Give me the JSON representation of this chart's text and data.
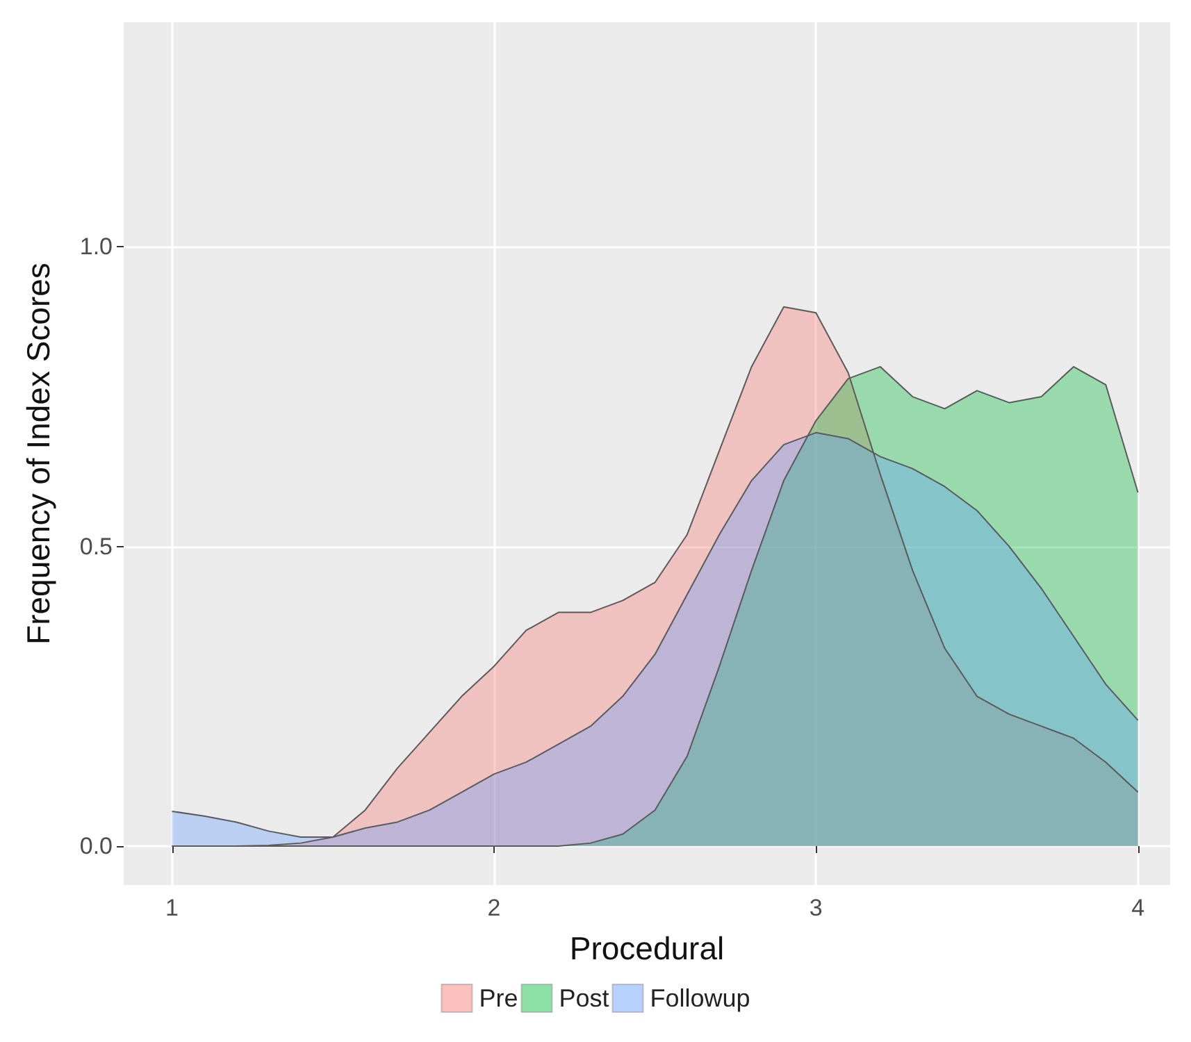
{
  "chart_data": {
    "type": "area",
    "xlabel": "Procedural",
    "ylabel": "Frequency of Index Scores",
    "x": [
      1.0,
      1.1,
      1.2,
      1.3,
      1.4,
      1.5,
      1.6,
      1.7,
      1.8,
      1.9,
      2.0,
      2.1,
      2.2,
      2.3,
      2.4,
      2.5,
      2.6,
      2.7,
      2.8,
      2.9,
      3.0,
      3.1,
      3.2,
      3.3,
      3.4,
      3.5,
      3.6,
      3.7,
      3.8,
      3.9,
      4.0
    ],
    "series": [
      {
        "name": "Pre",
        "color": "#f8766d",
        "values": [
          0,
          0,
          0,
          0.001,
          0.005,
          0.015,
          0.06,
          0.13,
          0.19,
          0.25,
          0.3,
          0.36,
          0.39,
          0.39,
          0.41,
          0.44,
          0.52,
          0.66,
          0.8,
          0.9,
          0.89,
          0.79,
          0.62,
          0.46,
          0.33,
          0.25,
          0.22,
          0.2,
          0.18,
          0.14,
          0.09
        ]
      },
      {
        "name": "Post",
        "color": "#00ba38",
        "values": [
          0,
          0,
          0,
          0,
          0,
          0,
          0,
          0,
          0,
          0,
          0,
          0,
          0,
          0.005,
          0.02,
          0.06,
          0.15,
          0.3,
          0.46,
          0.61,
          0.71,
          0.78,
          0.8,
          0.75,
          0.73,
          0.76,
          0.74,
          0.75,
          0.8,
          0.77,
          0.59
        ]
      },
      {
        "name": "Followup",
        "color": "#619cff",
        "values": [
          0.058,
          0.05,
          0.04,
          0.025,
          0.015,
          0.015,
          0.03,
          0.04,
          0.06,
          0.09,
          0.12,
          0.14,
          0.17,
          0.2,
          0.25,
          0.32,
          0.42,
          0.52,
          0.61,
          0.67,
          0.69,
          0.68,
          0.65,
          0.63,
          0.6,
          0.56,
          0.5,
          0.43,
          0.35,
          0.27,
          0.21
        ]
      }
    ],
    "xlim": [
      0.85,
      4.1
    ],
    "xticks": [
      1,
      2,
      3,
      4
    ],
    "ylim": [
      -0.065,
      1.375
    ],
    "yticks": [
      {
        "value": 0,
        "label": "0.0"
      },
      {
        "value": 0.5,
        "label": "0.5"
      },
      {
        "value": 1,
        "label": "1.0"
      }
    ],
    "grid": true,
    "legend": "bottom"
  }
}
